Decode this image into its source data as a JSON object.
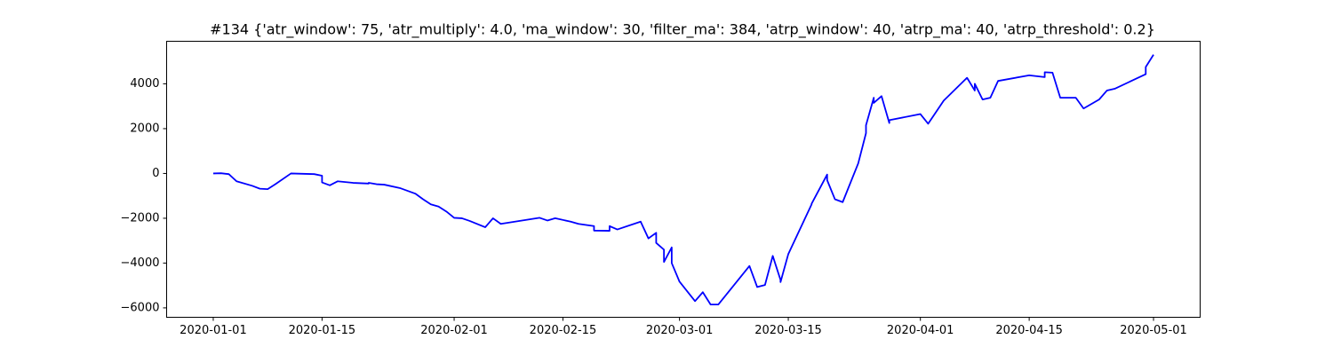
{
  "chart_data": {
    "type": "line",
    "title": "#134 {'atr_window': 75, 'atr_multiply': 4.0, 'ma_window': 30, 'filter_ma': 384, 'atrp_window': 40, 'atrp_ma': 40, 'atrp_threshold': 0.2}",
    "x": [
      "2020-01-01",
      "2020-01-02",
      "2020-01-03",
      "2020-01-04",
      "2020-01-06",
      "2020-01-07",
      "2020-01-08",
      "2020-01-09",
      "2020-01-11",
      "2020-01-14",
      "2020-01-15",
      "2020-01-15",
      "2020-01-16",
      "2020-01-17",
      "2020-01-19",
      "2020-01-21",
      "2020-01-21",
      "2020-01-22",
      "2020-01-23",
      "2020-01-25",
      "2020-01-27",
      "2020-01-28",
      "2020-01-29",
      "2020-01-30",
      "2020-01-31",
      "2020-02-01",
      "2020-02-02",
      "2020-02-03",
      "2020-02-05",
      "2020-02-06",
      "2020-02-07",
      "2020-02-12",
      "2020-02-13",
      "2020-02-14",
      "2020-02-16",
      "2020-02-17",
      "2020-02-19",
      "2020-02-19",
      "2020-02-21",
      "2020-02-21",
      "2020-02-22",
      "2020-02-25",
      "2020-02-26",
      "2020-02-27",
      "2020-02-27",
      "2020-02-28",
      "2020-02-28",
      "2020-02-29",
      "2020-02-29",
      "2020-03-01",
      "2020-03-03",
      "2020-03-04",
      "2020-03-05",
      "2020-03-06",
      "2020-03-10",
      "2020-03-11",
      "2020-03-12",
      "2020-03-13",
      "2020-03-14",
      "2020-03-14",
      "2020-03-15",
      "2020-03-18",
      "2020-03-18",
      "2020-03-20",
      "2020-03-20",
      "2020-03-21",
      "2020-03-22",
      "2020-03-24",
      "2020-03-25",
      "2020-03-25",
      "2020-03-26",
      "2020-03-26",
      "2020-03-27",
      "2020-03-28",
      "2020-03-28",
      "2020-04-01",
      "2020-04-02",
      "2020-04-04",
      "2020-04-07",
      "2020-04-08",
      "2020-04-08",
      "2020-04-09",
      "2020-04-10",
      "2020-04-11",
      "2020-04-15",
      "2020-04-17",
      "2020-04-17",
      "2020-04-18",
      "2020-04-19",
      "2020-04-21",
      "2020-04-22",
      "2020-04-24",
      "2020-04-25",
      "2020-04-26",
      "2020-04-30",
      "2020-04-30",
      "2020-05-01"
    ],
    "series": [
      {
        "color": "#0000ff",
        "values": [
          0,
          10,
          -30,
          -350,
          -550,
          -680,
          -700,
          -480,
          0,
          -30,
          -100,
          -400,
          -530,
          -350,
          -420,
          -450,
          -420,
          -480,
          -500,
          -650,
          -900,
          -1150,
          -1380,
          -1480,
          -1700,
          -1980,
          -2000,
          -2120,
          -2400,
          -2000,
          -2250,
          -1980,
          -2100,
          -2000,
          -2150,
          -2250,
          -2350,
          -2550,
          -2560,
          -2350,
          -2500,
          -2150,
          -2900,
          -2650,
          -3100,
          -3400,
          -3950,
          -3300,
          -4000,
          -4830,
          -5700,
          -5300,
          -5850,
          -5850,
          -4130,
          -5070,
          -4980,
          -3680,
          -4750,
          -4850,
          -3600,
          -1380,
          -1350,
          -50,
          -300,
          -1150,
          -1280,
          450,
          1800,
          2150,
          3380,
          3150,
          3450,
          2250,
          2380,
          2650,
          2220,
          3250,
          4270,
          3700,
          4000,
          3300,
          3380,
          4130,
          4380,
          4300,
          4520,
          4500,
          3380,
          3380,
          2900,
          3300,
          3700,
          3780,
          4430,
          4750,
          5300
        ]
      }
    ],
    "xlim": [
      "2019-12-26",
      "2020-05-07"
    ],
    "xticks": [
      "2020-01-01",
      "2020-01-15",
      "2020-02-01",
      "2020-02-15",
      "2020-03-01",
      "2020-03-15",
      "2020-04-01",
      "2020-04-15",
      "2020-05-01"
    ],
    "ylim": [
      -6420,
      5900
    ],
    "yticks": [
      {
        "value": -6000,
        "label": "−6000"
      },
      {
        "value": -4000,
        "label": "−4000"
      },
      {
        "value": -2000,
        "label": "−2000"
      },
      0,
      2000,
      4000
    ]
  }
}
